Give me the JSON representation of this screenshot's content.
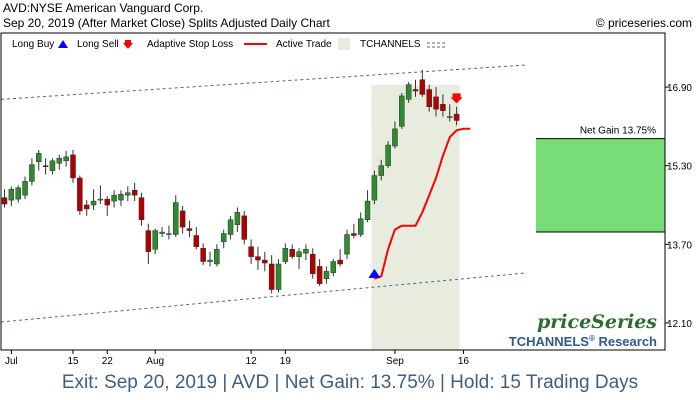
{
  "header": {
    "title": "AVD:NYSE American Vanguard Corp.",
    "subtitle": "Sep 20, 2019 (After Market Close)  Splits Adjusted Daily Chart",
    "copyright": "© priceseries.com"
  },
  "legend": {
    "long_buy": "Long Buy",
    "long_sell": "Long Sell",
    "adaptive_stop": "Adaptive Stop Loss",
    "active_trade": "Active Trade",
    "tchannels": "TCHANNELS"
  },
  "branding": {
    "logo": "priceSeries",
    "research": "TCHANNELS",
    "research_suffix": "Research",
    "research_mark": "®"
  },
  "net_gain_label": "Net Gain 13.75%",
  "footer": "Exit: Sep 20, 2019 | AVD | Net Gain: 13.75% | Hold: 15 Trading Days",
  "colors": {
    "up": "#2e8b2e",
    "down": "#b00000",
    "stop": "#ff0000",
    "active_trade_bg": "#e8ecdf",
    "gain_box": "#77dd77",
    "channel": "#4a6a8a",
    "buy_arrow": "#0000ff",
    "sell_arrow": "#ff0000"
  },
  "chart_data": {
    "type": "candlestick",
    "y_ticks": [
      12.1,
      13.7,
      15.3,
      16.9
    ],
    "ylim": [
      11.55,
      18.0
    ],
    "x_ticks": [
      {
        "label": "Jul",
        "index": 1
      },
      {
        "label": "15",
        "index": 10
      },
      {
        "label": "22",
        "index": 15
      },
      {
        "label": "Aug",
        "index": 22
      },
      {
        "label": "12",
        "index": 36
      },
      {
        "label": "19",
        "index": 41
      },
      {
        "label": "Sep",
        "index": 57
      },
      {
        "label": "16",
        "index": 67
      }
    ],
    "candles": [
      {
        "o": 14.65,
        "h": 14.82,
        "l": 14.45,
        "c": 14.52
      },
      {
        "o": 14.6,
        "h": 14.88,
        "l": 14.48,
        "c": 14.82
      },
      {
        "o": 14.62,
        "h": 14.9,
        "l": 14.55,
        "c": 14.85
      },
      {
        "o": 14.7,
        "h": 15.08,
        "l": 14.62,
        "c": 14.98
      },
      {
        "o": 14.98,
        "h": 15.45,
        "l": 14.9,
        "c": 15.32
      },
      {
        "o": 15.38,
        "h": 15.62,
        "l": 15.2,
        "c": 15.55
      },
      {
        "o": 15.3,
        "h": 15.45,
        "l": 15.12,
        "c": 15.28
      },
      {
        "o": 15.2,
        "h": 15.45,
        "l": 15.12,
        "c": 15.4
      },
      {
        "o": 15.35,
        "h": 15.52,
        "l": 15.22,
        "c": 15.45
      },
      {
        "o": 15.4,
        "h": 15.6,
        "l": 15.28,
        "c": 15.48
      },
      {
        "o": 15.52,
        "h": 15.62,
        "l": 14.95,
        "c": 15.05
      },
      {
        "o": 15.05,
        "h": 15.1,
        "l": 14.3,
        "c": 14.38
      },
      {
        "o": 14.5,
        "h": 14.6,
        "l": 14.28,
        "c": 14.42
      },
      {
        "o": 14.5,
        "h": 14.82,
        "l": 14.4,
        "c": 14.58
      },
      {
        "o": 14.62,
        "h": 14.9,
        "l": 14.52,
        "c": 14.62
      },
      {
        "o": 14.62,
        "h": 14.68,
        "l": 14.28,
        "c": 14.5
      },
      {
        "o": 14.58,
        "h": 14.8,
        "l": 14.45,
        "c": 14.7
      },
      {
        "o": 14.6,
        "h": 14.8,
        "l": 14.48,
        "c": 14.72
      },
      {
        "o": 14.7,
        "h": 14.88,
        "l": 14.58,
        "c": 14.75
      },
      {
        "o": 14.8,
        "h": 14.95,
        "l": 14.58,
        "c": 14.7
      },
      {
        "o": 14.65,
        "h": 14.75,
        "l": 14.08,
        "c": 14.2
      },
      {
        "o": 13.98,
        "h": 14.12,
        "l": 13.3,
        "c": 13.55
      },
      {
        "o": 13.6,
        "h": 14.02,
        "l": 13.5,
        "c": 13.98
      },
      {
        "o": 13.92,
        "h": 14.05,
        "l": 13.85,
        "c": 13.95
      },
      {
        "o": 13.9,
        "h": 14.08,
        "l": 13.8,
        "c": 13.92
      },
      {
        "o": 13.9,
        "h": 14.7,
        "l": 13.85,
        "c": 14.55
      },
      {
        "o": 14.38,
        "h": 14.48,
        "l": 13.92,
        "c": 14.05
      },
      {
        "o": 14.02,
        "h": 14.18,
        "l": 13.85,
        "c": 13.98
      },
      {
        "o": 13.88,
        "h": 14.05,
        "l": 13.6,
        "c": 13.65
      },
      {
        "o": 13.62,
        "h": 13.72,
        "l": 13.28,
        "c": 13.35
      },
      {
        "o": 13.35,
        "h": 13.55,
        "l": 13.25,
        "c": 13.38
      },
      {
        "o": 13.3,
        "h": 13.7,
        "l": 13.25,
        "c": 13.6
      },
      {
        "o": 13.75,
        "h": 14.0,
        "l": 13.62,
        "c": 13.92
      },
      {
        "o": 13.9,
        "h": 14.28,
        "l": 13.8,
        "c": 14.2
      },
      {
        "o": 14.1,
        "h": 14.45,
        "l": 13.95,
        "c": 14.35
      },
      {
        "o": 14.28,
        "h": 14.38,
        "l": 13.7,
        "c": 13.8
      },
      {
        "o": 13.65,
        "h": 13.8,
        "l": 13.3,
        "c": 13.45
      },
      {
        "o": 13.45,
        "h": 13.65,
        "l": 13.18,
        "c": 13.38
      },
      {
        "o": 13.38,
        "h": 13.55,
        "l": 13.15,
        "c": 13.32
      },
      {
        "o": 13.3,
        "h": 13.48,
        "l": 12.7,
        "c": 12.78
      },
      {
        "o": 12.78,
        "h": 13.4,
        "l": 12.72,
        "c": 13.3
      },
      {
        "o": 13.35,
        "h": 13.72,
        "l": 13.3,
        "c": 13.62
      },
      {
        "o": 13.6,
        "h": 13.7,
        "l": 13.4,
        "c": 13.45
      },
      {
        "o": 13.45,
        "h": 13.62,
        "l": 13.2,
        "c": 13.55
      },
      {
        "o": 13.52,
        "h": 13.7,
        "l": 13.38,
        "c": 13.6
      },
      {
        "o": 13.5,
        "h": 13.62,
        "l": 13.0,
        "c": 13.1
      },
      {
        "o": 13.25,
        "h": 13.4,
        "l": 12.85,
        "c": 12.9
      },
      {
        "o": 13.0,
        "h": 13.25,
        "l": 12.9,
        "c": 13.15
      },
      {
        "o": 13.12,
        "h": 13.4,
        "l": 13.05,
        "c": 13.35
      },
      {
        "o": 13.38,
        "h": 13.6,
        "l": 13.25,
        "c": 13.3
      },
      {
        "o": 13.5,
        "h": 14.0,
        "l": 13.4,
        "c": 13.9
      },
      {
        "o": 13.92,
        "h": 14.12,
        "l": 13.82,
        "c": 13.88
      },
      {
        "o": 13.9,
        "h": 14.35,
        "l": 13.85,
        "c": 14.22
      },
      {
        "o": 14.2,
        "h": 14.8,
        "l": 14.15,
        "c": 14.58
      },
      {
        "o": 14.6,
        "h": 15.2,
        "l": 14.52,
        "c": 15.1
      },
      {
        "o": 15.1,
        "h": 15.42,
        "l": 15.0,
        "c": 15.3
      },
      {
        "o": 15.3,
        "h": 15.8,
        "l": 15.25,
        "c": 15.72
      },
      {
        "o": 15.7,
        "h": 16.2,
        "l": 15.65,
        "c": 16.05
      },
      {
        "o": 16.1,
        "h": 16.78,
        "l": 16.05,
        "c": 16.72
      },
      {
        "o": 16.65,
        "h": 17.0,
        "l": 16.58,
        "c": 16.95
      },
      {
        "o": 16.85,
        "h": 17.05,
        "l": 16.7,
        "c": 16.82
      },
      {
        "o": 17.05,
        "h": 17.25,
        "l": 16.7,
        "c": 16.75
      },
      {
        "o": 16.85,
        "h": 16.95,
        "l": 16.4,
        "c": 16.5
      },
      {
        "o": 16.7,
        "h": 16.9,
        "l": 16.3,
        "c": 16.45
      },
      {
        "o": 16.55,
        "h": 16.75,
        "l": 16.3,
        "c": 16.42
      },
      {
        "o": 16.3,
        "h": 16.55,
        "l": 16.2,
        "c": 16.3
      },
      {
        "o": 16.35,
        "h": 16.5,
        "l": 16.12,
        "c": 16.22
      }
    ],
    "shade_candle_index": 0,
    "active_trade": {
      "start_index": 54,
      "end_index": 66
    },
    "adaptive_stop": {
      "start_index": 54,
      "values": [
        13.0,
        13.05,
        13.6,
        14.0,
        14.08,
        14.08,
        14.08,
        14.35,
        14.7,
        15.05,
        15.5,
        15.88,
        16.02,
        16.05,
        16.05
      ]
    },
    "buy_signal": {
      "index": 54,
      "price": 13.12
    },
    "sell_signal": {
      "index": 66,
      "price": 16.65
    },
    "gain_box": {
      "top": 15.85,
      "bottom": 13.95
    },
    "channel_upper": {
      "start_price": 16.65,
      "end_price": 17.35
    },
    "channel_lower": {
      "start_price": 12.12,
      "end_price": 13.12
    }
  }
}
